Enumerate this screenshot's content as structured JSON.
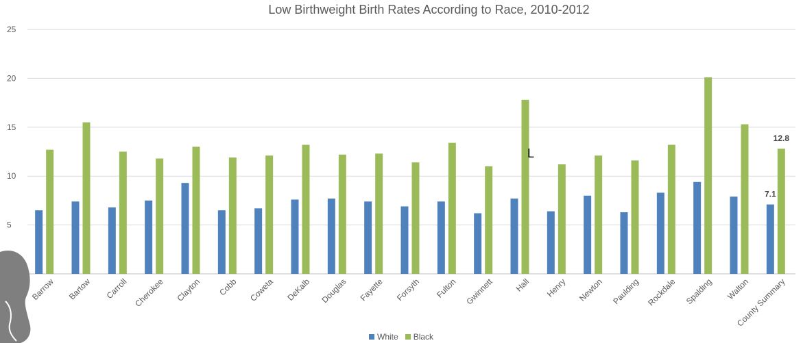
{
  "chart_data": {
    "type": "bar",
    "title": "Low Birthweight Birth Rates According to Race, 2010-2012",
    "categories": [
      "Barrow",
      "Bartow",
      "Carroll",
      "Cherokee",
      "Clayton",
      "Cobb",
      "Coweta",
      "DeKalb",
      "Douglas",
      "Fayette",
      "Forsyth",
      "Fulton",
      "Gwinnett",
      "Hall",
      "Henry",
      "Newton",
      "Paulding",
      "Rockdale",
      "Spalding",
      "Walton",
      "County Summary"
    ],
    "series": [
      {
        "name": "White",
        "color": "#4f81bd",
        "values": [
          6.5,
          7.4,
          6.8,
          7.5,
          9.3,
          6.5,
          6.7,
          7.6,
          7.7,
          7.4,
          6.9,
          7.4,
          6.2,
          7.7,
          6.4,
          8.0,
          6.3,
          8.3,
          9.4,
          7.9,
          7.1
        ]
      },
      {
        "name": "Black",
        "color": "#9bbb59",
        "values": [
          12.7,
          15.5,
          12.5,
          11.8,
          13.0,
          11.9,
          12.1,
          13.2,
          12.2,
          12.3,
          11.4,
          13.4,
          11.0,
          17.8,
          11.2,
          12.1,
          11.6,
          13.2,
          20.1,
          15.3,
          12.8
        ]
      }
    ],
    "ylim": [
      0,
      25
    ],
    "yticks": [
      "5",
      "10",
      "15",
      "20",
      "25"
    ],
    "grid": true,
    "legend_position": "bottom",
    "data_labels": [
      {
        "series": "White",
        "category": "County Summary",
        "text": "7.1"
      },
      {
        "series": "Black",
        "category": "County Summary",
        "text": "12.8"
      }
    ]
  },
  "stray_mark": "L",
  "legend": [
    {
      "label": "White",
      "color": "#4f81bd"
    },
    {
      "label": "Black",
      "color": "#9bbb59"
    }
  ]
}
